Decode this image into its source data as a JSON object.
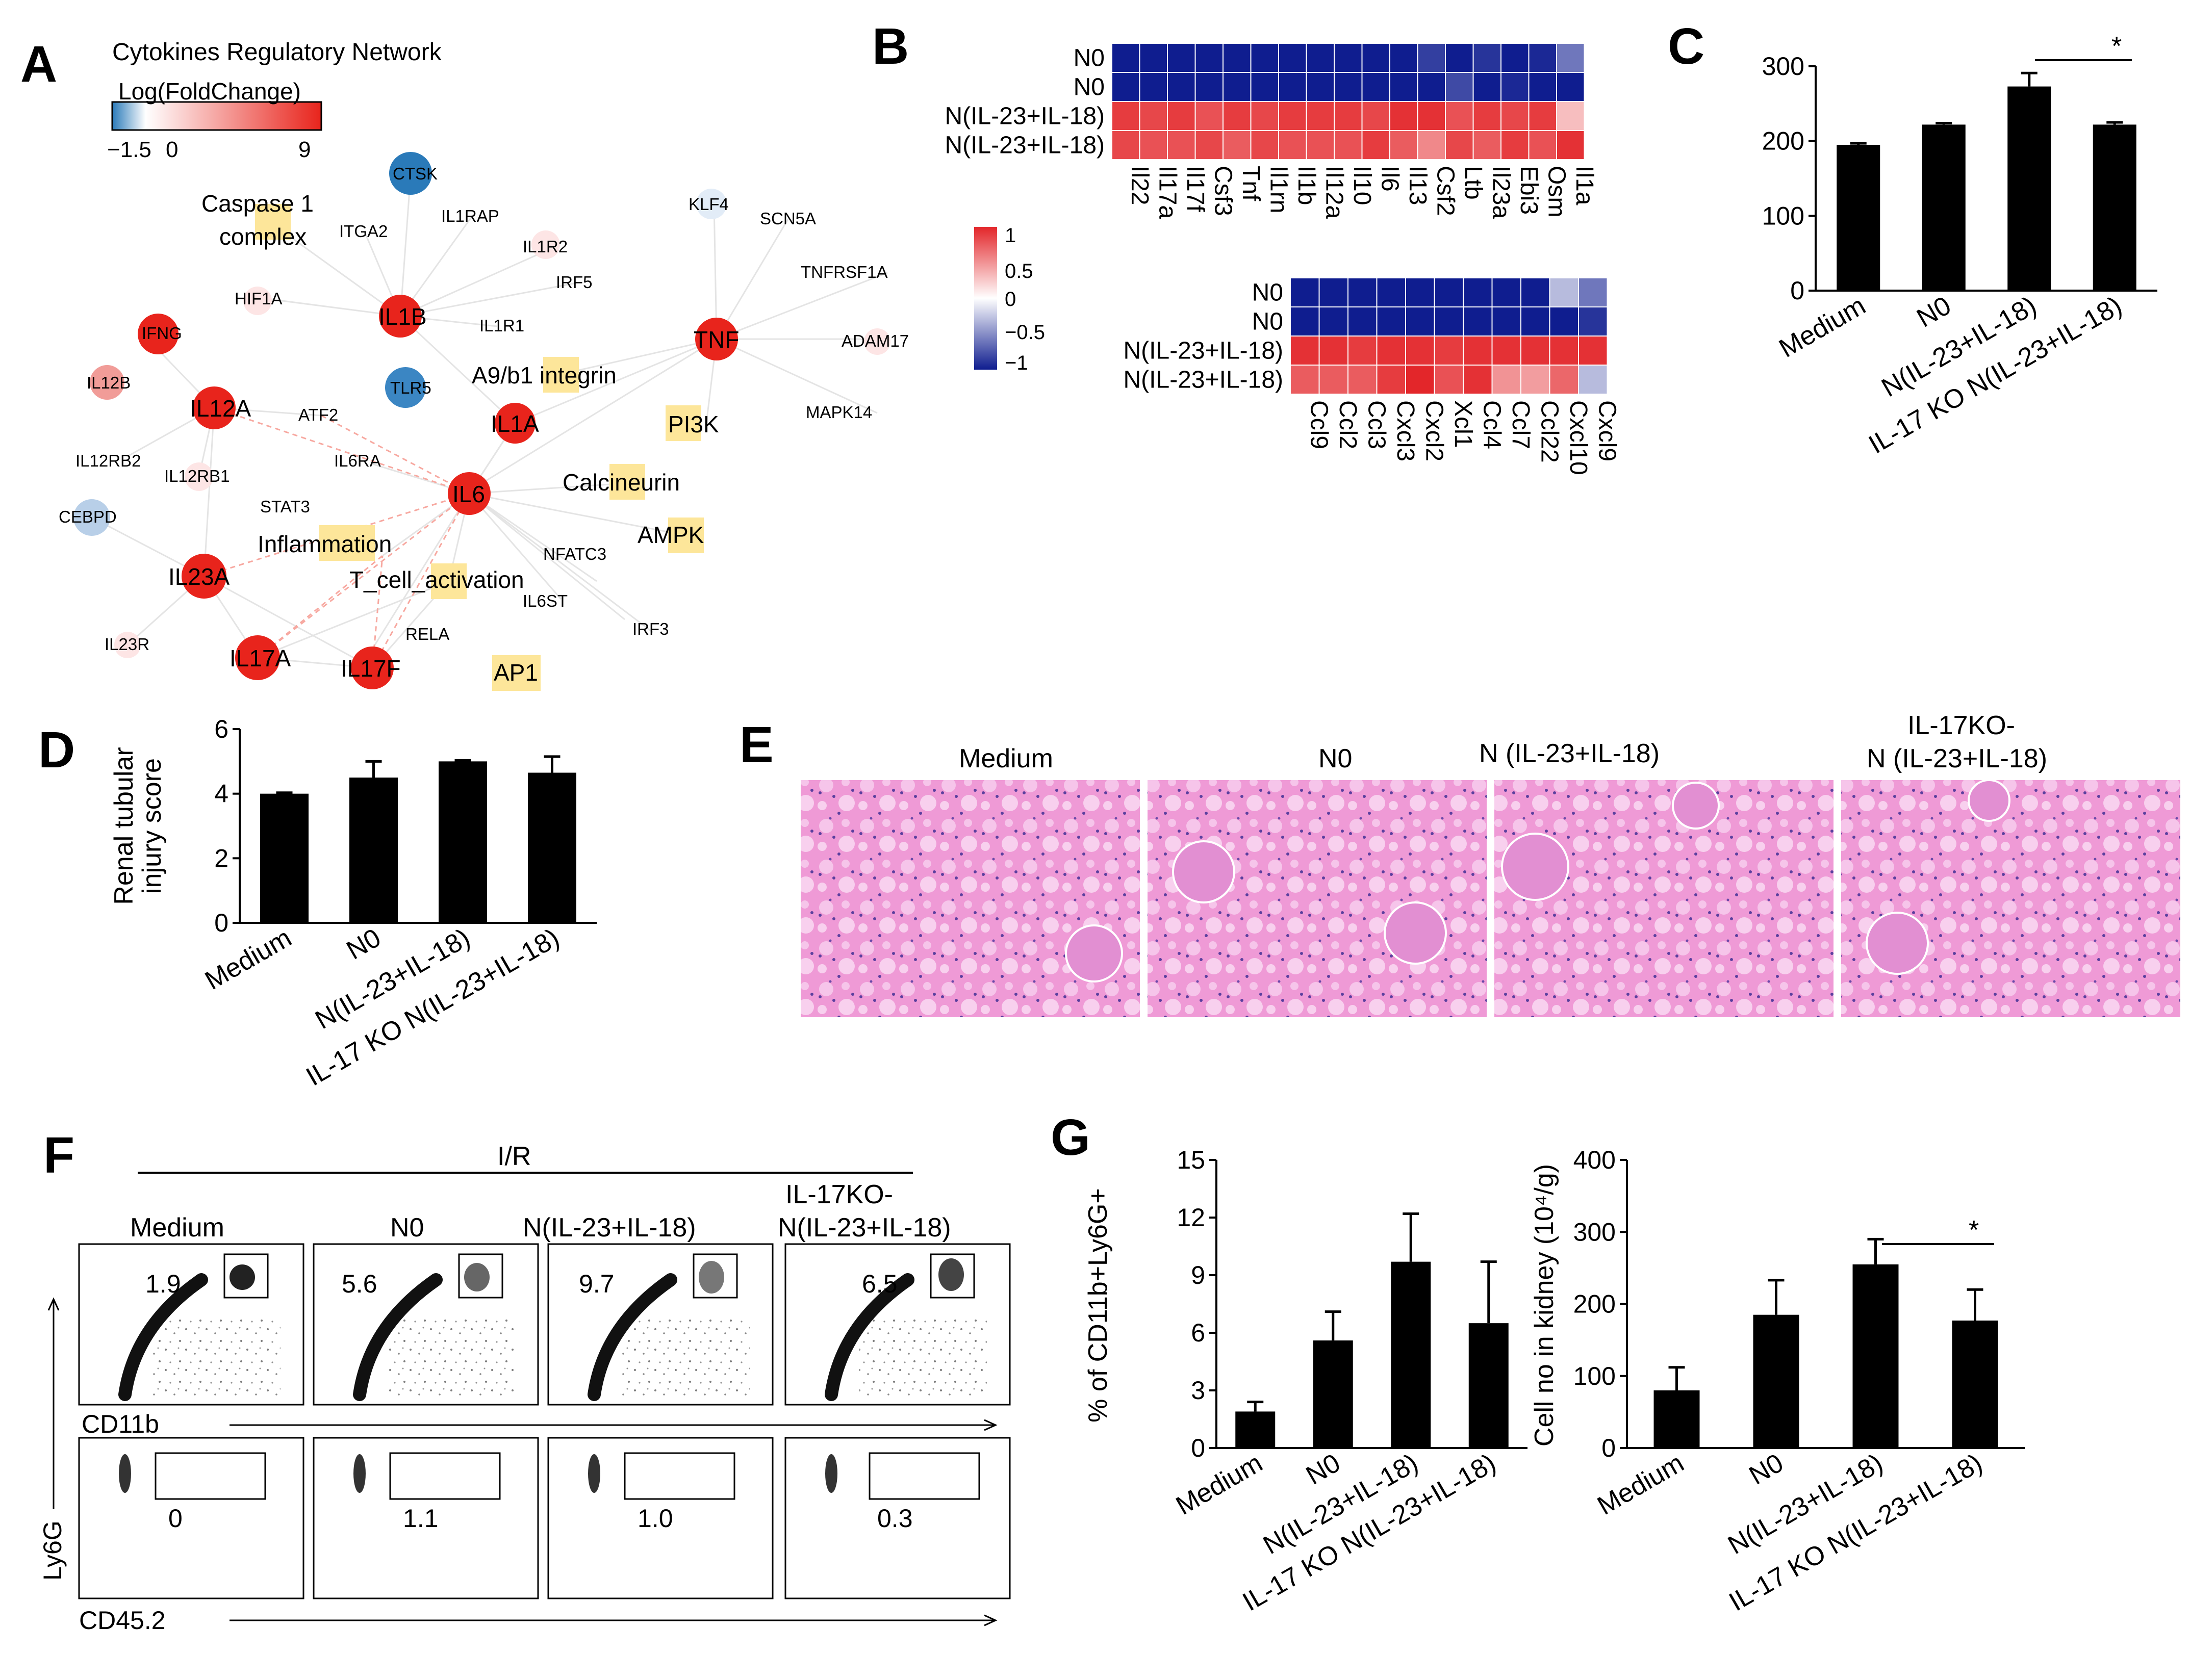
{
  "panels": {
    "A": {
      "label": "A",
      "title": "Cytokines Regulatory Network",
      "legend_title": "Log(FoldChange)",
      "legend_ticks": [
        "−1.5",
        "0",
        "9"
      ],
      "legend_colors": [
        "#2a7ab9",
        "#ffffff",
        "#e8241c"
      ],
      "nodes": {
        "ctsk": "CTSK",
        "caspase": "Caspase 1",
        "complex": "complex",
        "itga2": "ITGA2",
        "il1rap": "IL1RAP",
        "il1r2": "IL1R2",
        "irf5": "IRF5",
        "klf4": "KLF4",
        "scn5a": "SCN5A",
        "tnfrsf1a": "TNFRSF1A",
        "hif1a": "HIF1A",
        "il1b": "IL1B",
        "il1r1": "IL1R1",
        "tnf": "TNF",
        "adam17": "ADAM17",
        "ifng": "IFNG",
        "a9b1": "A9/b1 integrin",
        "il12b": "IL12B",
        "tlr5": "TLR5",
        "il12a": "IL12A",
        "atf2": "ATF2",
        "pi3k": "PI3K",
        "mapk14": "MAPK14",
        "il1a": "IL1A",
        "il12rb2": "IL12RB2",
        "il6ra": "IL6RA",
        "il12rb1": "IL12RB1",
        "il6": "IL6",
        "calcineurin": "Calcineurin",
        "stat3": "STAT3",
        "cebpd": "CEBPD",
        "inflammation": "Inflammation",
        "ampk": "AMPK",
        "nfatc3": "NFATC3",
        "il23a": "IL23A",
        "tcell": "T_cell_activation",
        "il6st": "IL6ST",
        "irf3": "IRF3",
        "il23r": "IL23R",
        "rela": "RELA",
        "il17a": "IL17A",
        "il17f": "IL17F",
        "ap1": "AP1"
      }
    },
    "B": {
      "label": "B",
      "scale_ticks": [
        "1",
        "0.5",
        "0",
        "−0.5",
        "−1"
      ],
      "top": {
        "rows": [
          "N0",
          "N0",
          "N(IL-23+IL-18)",
          "N(IL-23+IL-18)"
        ],
        "cols": [
          "Il22",
          "Il17a",
          "Il17f",
          "Csf3",
          "Tnf",
          "Il1rn",
          "Il1b",
          "Il12a",
          "Il10",
          "Il6",
          "Il13",
          "Csf2",
          "Ltb",
          "Il23a",
          "Ebi3",
          "Osm",
          "Il1a"
        ],
        "values": [
          [
            -1,
            -1,
            -1,
            -1,
            -1,
            -1,
            -1,
            -1,
            -1,
            -1,
            -1,
            -0.85,
            -1,
            -0.9,
            -1,
            -0.95,
            -0.6
          ],
          [
            -1,
            -1,
            -1,
            -1,
            -1,
            -1,
            -1,
            -1,
            -1,
            -1,
            -1,
            -1,
            -0.8,
            -1,
            -0.95,
            -1,
            -1
          ],
          [
            0.9,
            0.85,
            0.9,
            0.8,
            0.9,
            0.85,
            0.9,
            0.9,
            0.9,
            0.85,
            0.95,
            0.95,
            0.8,
            0.9,
            0.85,
            0.9,
            0.3
          ],
          [
            0.85,
            0.8,
            0.8,
            0.85,
            0.75,
            0.85,
            0.8,
            0.8,
            0.8,
            0.9,
            0.75,
            0.55,
            0.85,
            0.75,
            0.9,
            0.8,
            0.95
          ]
        ]
      },
      "bottom": {
        "rows": [
          "N0",
          "N0",
          "N(IL-23+IL-18)",
          "N(IL-23+IL-18)"
        ],
        "cols": [
          "Ccl9",
          "Ccl2",
          "Ccl3",
          "Cxcl3",
          "Cxcl2",
          "Xcl1",
          "Ccl4",
          "Ccl7",
          "Ccl22",
          "Cxcl10",
          "Cxcl9"
        ],
        "values": [
          [
            -1,
            -1,
            -1,
            -1,
            -1,
            -1,
            -1,
            -1,
            -1,
            -0.3,
            -0.6
          ],
          [
            -1,
            -1,
            -1,
            -1,
            -1,
            -1,
            -1,
            -1,
            -1,
            -1,
            -0.9
          ],
          [
            0.95,
            0.95,
            0.9,
            0.95,
            0.95,
            0.9,
            0.95,
            0.95,
            0.95,
            0.95,
            0.95
          ],
          [
            0.75,
            0.75,
            0.75,
            0.9,
            1.0,
            0.8,
            0.95,
            0.5,
            0.45,
            0.7,
            -0.3
          ]
        ]
      }
    },
    "C": {
      "label": "C",
      "sig": "*"
    },
    "D": {
      "label": "D"
    },
    "E": {
      "label": "E",
      "captions": [
        "Medium",
        "N0",
        "N (IL-23+IL-18)",
        "IL-17KO-",
        "N (IL-23+IL-18)"
      ]
    },
    "F": {
      "label": "F",
      "ir": "I/R",
      "groups": [
        "Medium",
        "N0",
        "N(IL-23+IL-18)",
        "IL-17KO-",
        "N(IL-23+IL-18)"
      ],
      "top_pct": [
        "1.9",
        "5.6",
        "9.7",
        "6.5"
      ],
      "bot_pct": [
        "0",
        "1.1",
        "1.0",
        "0.3"
      ],
      "x_top": "CD11b",
      "x_bot": "CD45.2",
      "y": "Ly6G"
    },
    "G": {
      "label": "G",
      "sig": "*"
    }
  },
  "chart_data": [
    {
      "id": "C",
      "type": "bar",
      "categories": [
        "Medium",
        "N0",
        "N(IL-23+IL-18)",
        "IL-17 KO N(IL-23+IL-18)"
      ],
      "values": [
        195,
        222,
        273,
        222
      ],
      "errors": [
        2,
        2,
        18,
        3
      ],
      "ylim": [
        0,
        300
      ],
      "yticks": [
        0,
        100,
        200,
        300
      ],
      "title": "",
      "xlabel": "",
      "ylabel": ""
    },
    {
      "id": "D",
      "type": "bar",
      "categories": [
        "Medium",
        "N0",
        "N(IL-23+IL-18)",
        "IL-17 KO N(IL-23+IL-18)"
      ],
      "values": [
        4.0,
        4.5,
        5.0,
        4.65
      ],
      "errors": [
        0.03,
        0.5,
        0.03,
        0.5
      ],
      "ylim": [
        0,
        6
      ],
      "yticks": [
        0,
        2,
        4,
        6
      ],
      "title": "",
      "xlabel": "",
      "ylabel": "Renal tubular",
      "ylabel2": "injury score"
    },
    {
      "id": "G1",
      "type": "bar",
      "categories": [
        "Medium",
        "N0",
        "N(IL-23+IL-18)",
        "IL-17 KO N(IL-23+IL-18)"
      ],
      "values": [
        1.9,
        5.6,
        9.7,
        6.5
      ],
      "errors": [
        0.5,
        1.5,
        2.5,
        3.2
      ],
      "ylim": [
        0,
        15
      ],
      "yticks": [
        0,
        3,
        6,
        9,
        12,
        15
      ],
      "title": "",
      "xlabel": "",
      "ylabel": "% of CD11b+Ly6G+"
    },
    {
      "id": "G2",
      "type": "bar",
      "categories": [
        "Medium",
        "N0",
        "N(IL-23+IL-18)",
        "IL-17 KO N(IL-23+IL-18)"
      ],
      "values": [
        80,
        185,
        255,
        177
      ],
      "errors": [
        32,
        48,
        35,
        43
      ],
      "ylim": [
        0,
        400
      ],
      "yticks": [
        0,
        100,
        200,
        300,
        400
      ],
      "title": "",
      "xlabel": "",
      "ylabel": "Cell no in kidney (10⁴/g)"
    }
  ]
}
